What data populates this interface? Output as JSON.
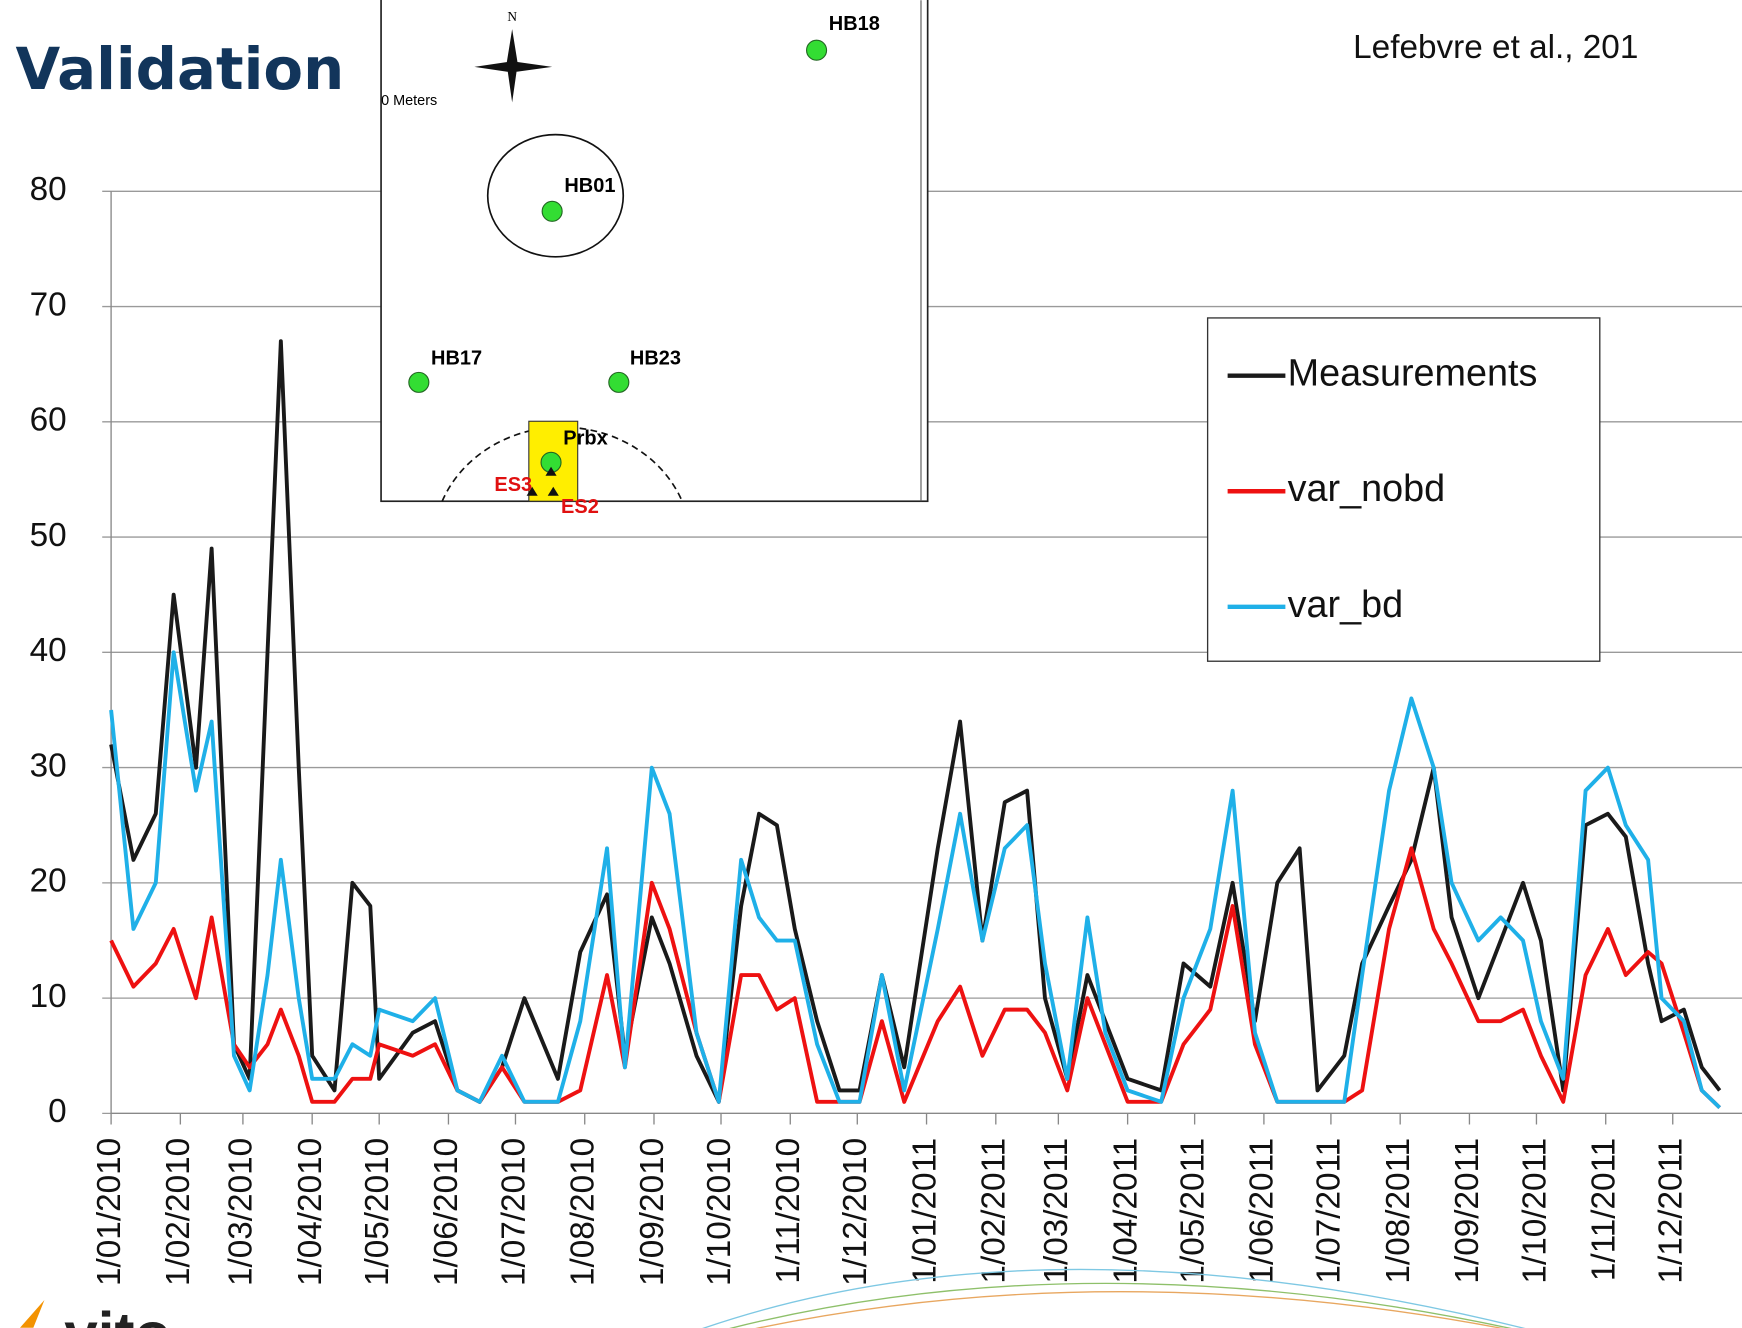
{
  "title": "Validation",
  "citation": "Lefebvre et al., 201",
  "logo": "vito",
  "inset": {
    "north": "N",
    "scale": "0 Meters",
    "wells": [
      "HB18",
      "HB01",
      "HB17",
      "HB23",
      "Prbx"
    ],
    "sensors": [
      "ES3",
      "ES2"
    ]
  },
  "chart_data": {
    "type": "line",
    "x": [
      "2010-01-01",
      "2010-01-11",
      "2010-01-21",
      "2010-01-29",
      "2010-02-08",
      "2010-02-15",
      "2010-02-25",
      "2010-03-04",
      "2010-03-12",
      "2010-03-18",
      "2010-03-26",
      "2010-04-01",
      "2010-04-11",
      "2010-04-19",
      "2010-04-27",
      "2010-05-01",
      "2010-05-16",
      "2010-05-26",
      "2010-06-05",
      "2010-06-15",
      "2010-06-25",
      "2010-07-05",
      "2010-07-20",
      "2010-07-30",
      "2010-08-11",
      "2010-08-19",
      "2010-08-31",
      "2010-09-08",
      "2010-09-20",
      "2010-09-30",
      "2010-10-10",
      "2010-10-18",
      "2010-10-26",
      "2010-11-03",
      "2010-11-13",
      "2010-11-23",
      "2010-12-02",
      "2010-12-12",
      "2010-12-22",
      "2011-01-06",
      "2011-01-16",
      "2011-01-26",
      "2011-02-05",
      "2011-02-15",
      "2011-02-23",
      "2011-03-05",
      "2011-03-14",
      "2011-03-22",
      "2011-04-01",
      "2011-04-16",
      "2011-04-26",
      "2011-05-08",
      "2011-05-18",
      "2011-05-28",
      "2011-06-07",
      "2011-06-17",
      "2011-06-25",
      "2011-07-07",
      "2011-07-15",
      "2011-07-27",
      "2011-08-06",
      "2011-08-16",
      "2011-08-24",
      "2011-09-05",
      "2011-09-15",
      "2011-09-25",
      "2011-10-03",
      "2011-10-13",
      "2011-10-23",
      "2011-11-02",
      "2011-11-10",
      "2011-11-20",
      "2011-11-26",
      "2011-12-06",
      "2011-12-14",
      "2011-12-22"
    ],
    "series": [
      {
        "name": "Measurements",
        "color": "#1a1a1a",
        "values": [
          32,
          22,
          26,
          45,
          30,
          49,
          6,
          3,
          40,
          67,
          30,
          5,
          2,
          20,
          18,
          3,
          7,
          8,
          2,
          1,
          4,
          10,
          3,
          14,
          19,
          5,
          17,
          13,
          5,
          1,
          18,
          26,
          25,
          16,
          8,
          2,
          2,
          12,
          4,
          23,
          34,
          15,
          27,
          28,
          10,
          3,
          12,
          8,
          3,
          2,
          13,
          11,
          20,
          8,
          20,
          23,
          2,
          5,
          13,
          18,
          22,
          30,
          17,
          10,
          15,
          20,
          15,
          2,
          25,
          26,
          24,
          13,
          8,
          9,
          4,
          2
        ]
      },
      {
        "name": "var_nobd",
        "color": "#ee1111",
        "values": [
          15,
          11,
          13,
          16,
          10,
          17,
          6,
          4,
          6,
          9,
          5,
          1,
          1,
          3,
          3,
          6,
          5,
          6,
          2,
          1,
          4,
          1,
          1,
          2,
          12,
          4,
          20,
          16,
          7,
          1,
          12,
          12,
          9,
          10,
          1,
          1,
          1,
          8,
          1,
          8,
          11,
          5,
          9,
          9,
          7,
          2,
          10,
          6,
          1,
          1,
          6,
          9,
          18,
          6,
          1,
          1,
          1,
          1,
          2,
          16,
          23,
          16,
          13,
          8,
          8,
          9,
          5,
          1,
          12,
          16,
          12,
          14,
          13,
          7,
          2,
          0.5
        ]
      },
      {
        "name": "var_bd",
        "color": "#1fb0e8",
        "values": [
          35,
          16,
          20,
          40,
          28,
          34,
          5,
          2,
          12,
          22,
          10,
          3,
          3,
          6,
          5,
          9,
          8,
          10,
          2,
          1,
          5,
          1,
          1,
          8,
          23,
          4,
          30,
          26,
          7,
          1,
          22,
          17,
          15,
          15,
          6,
          1,
          1,
          12,
          2,
          16,
          26,
          15,
          23,
          25,
          13,
          3,
          17,
          7,
          2,
          1,
          10,
          16,
          28,
          7,
          1,
          1,
          1,
          1,
          12,
          28,
          36,
          30,
          20,
          15,
          17,
          15,
          8,
          3,
          28,
          30,
          25,
          22,
          10,
          8,
          2,
          0.5
        ]
      }
    ],
    "xlim": [
      "2010-01-01",
      "2012-01-01"
    ],
    "xticks": [
      {
        "value": "2010-01-01",
        "label": "1/01/2010"
      },
      {
        "value": "2010-02-01",
        "label": "1/02/2010"
      },
      {
        "value": "2010-03-01",
        "label": "1/03/2010"
      },
      {
        "value": "2010-04-01",
        "label": "1/04/2010"
      },
      {
        "value": "2010-05-01",
        "label": "1/05/2010"
      },
      {
        "value": "2010-06-01",
        "label": "1/06/2010"
      },
      {
        "value": "2010-07-01",
        "label": "1/07/2010"
      },
      {
        "value": "2010-08-01",
        "label": "1/08/2010"
      },
      {
        "value": "2010-09-01",
        "label": "1/09/2010"
      },
      {
        "value": "2010-10-01",
        "label": "1/10/2010"
      },
      {
        "value": "2010-11-01",
        "label": "1/11/2010"
      },
      {
        "value": "2010-12-01",
        "label": "1/12/2010"
      },
      {
        "value": "2011-01-01",
        "label": "1/01/2011"
      },
      {
        "value": "2011-02-01",
        "label": "1/02/2011"
      },
      {
        "value": "2011-03-01",
        "label": "1/03/2011"
      },
      {
        "value": "2011-04-01",
        "label": "1/04/2011"
      },
      {
        "value": "2011-05-01",
        "label": "1/05/2011"
      },
      {
        "value": "2011-06-01",
        "label": "1/06/2011"
      },
      {
        "value": "2011-07-01",
        "label": "1/07/2011"
      },
      {
        "value": "2011-08-01",
        "label": "1/08/2011"
      },
      {
        "value": "2011-09-01",
        "label": "1/09/2011"
      },
      {
        "value": "2011-10-01",
        "label": "1/10/2011"
      },
      {
        "value": "2011-11-01",
        "label": "1/11/2011"
      },
      {
        "value": "2011-12-01",
        "label": "1/12/2011"
      }
    ],
    "ylim": [
      0,
      80
    ],
    "yticks": [
      0,
      10,
      20,
      30,
      40,
      50,
      60,
      70,
      80
    ],
    "grid": true,
    "legend": "right"
  }
}
